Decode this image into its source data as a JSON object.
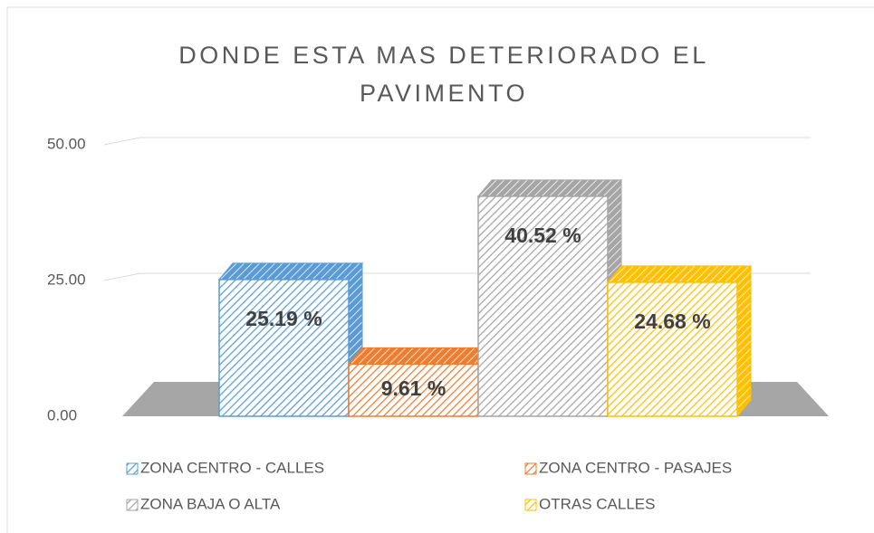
{
  "chart_data": {
    "type": "bar3d",
    "title": "DONDE ESTA MAS DETERIORADO EL PAVIMENTO",
    "series": [
      {
        "name": "ZONA CENTRO - CALLES",
        "color": "#5b9bd5",
        "values": [
          25.19
        ],
        "value_labels": [
          "25.19 %"
        ]
      },
      {
        "name": "ZONA CENTRO - PASAJES",
        "color": "#ed7d31",
        "values": [
          9.61
        ],
        "value_labels": [
          "9.61 %"
        ]
      },
      {
        "name": "ZONA BAJA O ALTA",
        "color": "#a5a5a5",
        "values": [
          40.52
        ],
        "value_labels": [
          "40.52 %"
        ]
      },
      {
        "name": "OTRAS CALLES",
        "color": "#ffc000",
        "values": [
          24.68
        ],
        "value_labels": [
          "24.68 %"
        ]
      }
    ],
    "ylim": [
      0,
      50
    ],
    "yticks": [
      {
        "value": 0,
        "label": "0.00"
      },
      {
        "value": 25,
        "label": "25.00"
      },
      {
        "value": 50,
        "label": "50.00"
      }
    ],
    "grid": true
  }
}
